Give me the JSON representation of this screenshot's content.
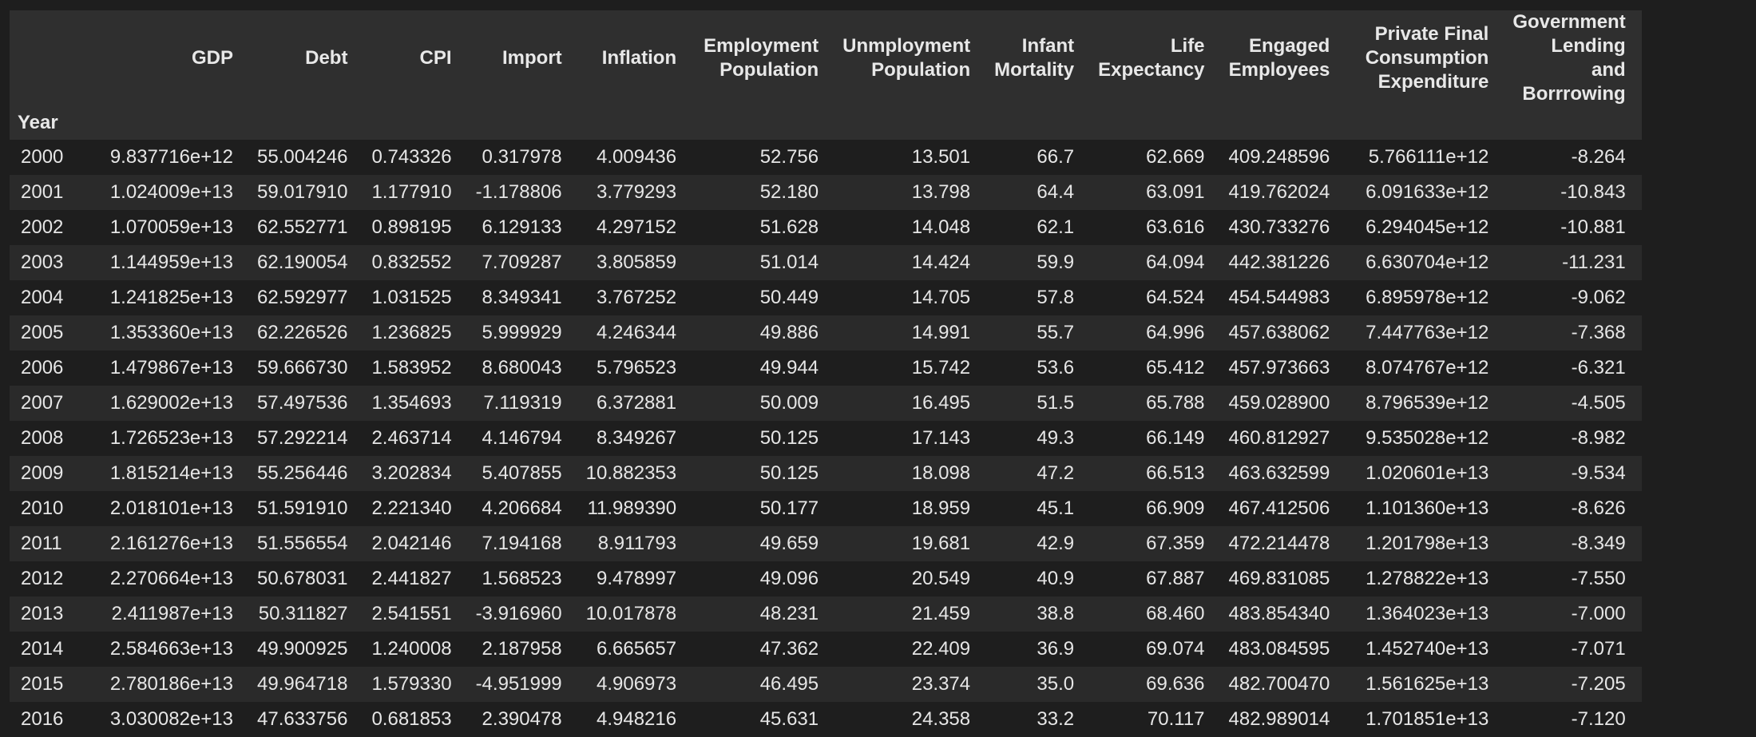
{
  "table": {
    "index_name": "Year",
    "columns": [
      "GDP",
      "Debt",
      "CPI",
      "Import",
      "Inflation",
      "Employment Population",
      "Unmployment Population",
      "Infant Mortality",
      "Life Expectancy",
      "Engaged Employees",
      "Private Final Consumption Expenditure",
      "Government Lending and Borrrowing"
    ],
    "rows": [
      {
        "year": "2000",
        "cells": [
          "9.837716e+12",
          "55.004246",
          "0.743326",
          "0.317978",
          "4.009436",
          "52.756",
          "13.501",
          "66.7",
          "62.669",
          "409.248596",
          "5.766111e+12",
          "-8.264"
        ]
      },
      {
        "year": "2001",
        "cells": [
          "1.024009e+13",
          "59.017910",
          "1.177910",
          "-1.178806",
          "3.779293",
          "52.180",
          "13.798",
          "64.4",
          "63.091",
          "419.762024",
          "6.091633e+12",
          "-10.843"
        ]
      },
      {
        "year": "2002",
        "cells": [
          "1.070059e+13",
          "62.552771",
          "0.898195",
          "6.129133",
          "4.297152",
          "51.628",
          "14.048",
          "62.1",
          "63.616",
          "430.733276",
          "6.294045e+12",
          "-10.881"
        ]
      },
      {
        "year": "2003",
        "cells": [
          "1.144959e+13",
          "62.190054",
          "0.832552",
          "7.709287",
          "3.805859",
          "51.014",
          "14.424",
          "59.9",
          "64.094",
          "442.381226",
          "6.630704e+12",
          "-11.231"
        ]
      },
      {
        "year": "2004",
        "cells": [
          "1.241825e+13",
          "62.592977",
          "1.031525",
          "8.349341",
          "3.767252",
          "50.449",
          "14.705",
          "57.8",
          "64.524",
          "454.544983",
          "6.895978e+12",
          "-9.062"
        ]
      },
      {
        "year": "2005",
        "cells": [
          "1.353360e+13",
          "62.226526",
          "1.236825",
          "5.999929",
          "4.246344",
          "49.886",
          "14.991",
          "55.7",
          "64.996",
          "457.638062",
          "7.447763e+12",
          "-7.368"
        ]
      },
      {
        "year": "2006",
        "cells": [
          "1.479867e+13",
          "59.666730",
          "1.583952",
          "8.680043",
          "5.796523",
          "49.944",
          "15.742",
          "53.6",
          "65.412",
          "457.973663",
          "8.074767e+12",
          "-6.321"
        ]
      },
      {
        "year": "2007",
        "cells": [
          "1.629002e+13",
          "57.497536",
          "1.354693",
          "7.119319",
          "6.372881",
          "50.009",
          "16.495",
          "51.5",
          "65.788",
          "459.028900",
          "8.796539e+12",
          "-4.505"
        ]
      },
      {
        "year": "2008",
        "cells": [
          "1.726523e+13",
          "57.292214",
          "2.463714",
          "4.146794",
          "8.349267",
          "50.125",
          "17.143",
          "49.3",
          "66.149",
          "460.812927",
          "9.535028e+12",
          "-8.982"
        ]
      },
      {
        "year": "2009",
        "cells": [
          "1.815214e+13",
          "55.256446",
          "3.202834",
          "5.407855",
          "10.882353",
          "50.125",
          "18.098",
          "47.2",
          "66.513",
          "463.632599",
          "1.020601e+13",
          "-9.534"
        ]
      },
      {
        "year": "2010",
        "cells": [
          "2.018101e+13",
          "51.591910",
          "2.221340",
          "4.206684",
          "11.989390",
          "50.177",
          "18.959",
          "45.1",
          "66.909",
          "467.412506",
          "1.101360e+13",
          "-8.626"
        ]
      },
      {
        "year": "2011",
        "cells": [
          "2.161276e+13",
          "51.556554",
          "2.042146",
          "7.194168",
          "8.911793",
          "49.659",
          "19.681",
          "42.9",
          "67.359",
          "472.214478",
          "1.201798e+13",
          "-8.349"
        ]
      },
      {
        "year": "2012",
        "cells": [
          "2.270664e+13",
          "50.678031",
          "2.441827",
          "1.568523",
          "9.478997",
          "49.096",
          "20.549",
          "40.9",
          "67.887",
          "469.831085",
          "1.278822e+13",
          "-7.550"
        ]
      },
      {
        "year": "2013",
        "cells": [
          "2.411987e+13",
          "50.311827",
          "2.541551",
          "-3.916960",
          "10.017878",
          "48.231",
          "21.459",
          "38.8",
          "68.460",
          "483.854340",
          "1.364023e+13",
          "-7.000"
        ]
      },
      {
        "year": "2014",
        "cells": [
          "2.584663e+13",
          "49.900925",
          "1.240008",
          "2.187958",
          "6.665657",
          "47.362",
          "22.409",
          "36.9",
          "69.074",
          "483.084595",
          "1.452740e+13",
          "-7.071"
        ]
      },
      {
        "year": "2015",
        "cells": [
          "2.780186e+13",
          "49.964718",
          "1.579330",
          "-4.951999",
          "4.906973",
          "46.495",
          "23.374",
          "35.0",
          "69.636",
          "482.700470",
          "1.561625e+13",
          "-7.205"
        ]
      },
      {
        "year": "2016",
        "cells": [
          "3.030082e+13",
          "47.633756",
          "0.681853",
          "2.390478",
          "4.948216",
          "45.631",
          "24.358",
          "33.2",
          "70.117",
          "482.989014",
          "1.701851e+13",
          "-7.120"
        ]
      }
    ]
  }
}
